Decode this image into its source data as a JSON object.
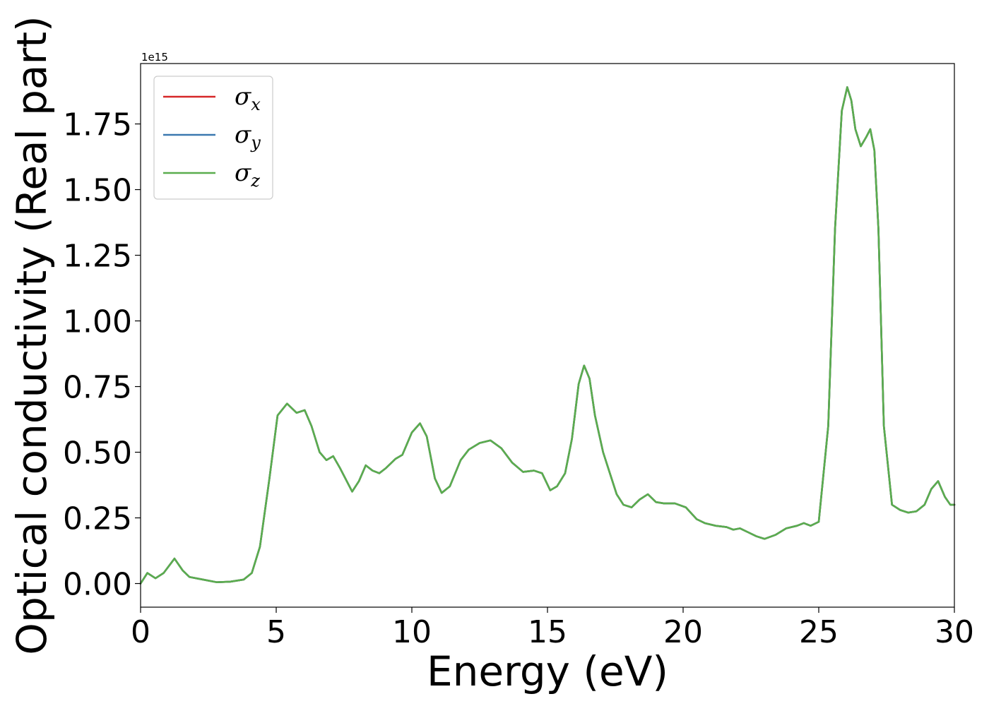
{
  "chart_data": {
    "type": "line",
    "xlabel": "Energy (eV)",
    "ylabel": "Optical conductivity (Real part)",
    "offset_text": "1e15",
    "xlim": [
      0,
      30
    ],
    "ylim": [
      -0.09,
      1.98
    ],
    "x_ticks": [
      0,
      5,
      10,
      15,
      20,
      25,
      30
    ],
    "y_ticks": [
      0.0,
      0.25,
      0.5,
      0.75,
      1.0,
      1.25,
      1.5,
      1.75
    ],
    "x_tick_labels": [
      "0",
      "5",
      "10",
      "15",
      "20",
      "25",
      "30"
    ],
    "y_tick_labels": [
      "0.00",
      "0.25",
      "0.50",
      "0.75",
      "1.00",
      "1.25",
      "1.50",
      "1.75"
    ],
    "grid": false,
    "legend_position": "upper-left",
    "x": [
      0,
      0.25,
      0.55,
      0.85,
      1.25,
      1.55,
      1.8,
      2.3,
      2.8,
      3.3,
      3.8,
      4.1,
      4.4,
      4.75,
      5.05,
      5.4,
      5.75,
      6.05,
      6.3,
      6.6,
      6.85,
      7.1,
      7.35,
      7.8,
      8.05,
      8.3,
      8.55,
      8.8,
      9.05,
      9.4,
      9.65,
      10.0,
      10.3,
      10.55,
      10.85,
      11.1,
      11.4,
      11.8,
      12.1,
      12.5,
      12.9,
      13.3,
      13.7,
      14.1,
      14.5,
      14.8,
      15.1,
      15.35,
      15.65,
      15.9,
      16.15,
      16.35,
      16.55,
      16.75,
      17.05,
      17.3,
      17.55,
      17.8,
      18.1,
      18.4,
      18.7,
      19.0,
      19.3,
      19.7,
      20.1,
      20.5,
      20.8,
      21.2,
      21.6,
      21.85,
      22.1,
      22.4,
      22.7,
      23.0,
      23.4,
      23.8,
      24.2,
      24.45,
      24.7,
      25.0,
      25.35,
      25.6,
      25.85,
      26.05,
      26.2,
      26.35,
      26.55,
      26.75,
      26.9,
      27.05,
      27.2,
      27.4,
      27.7,
      28.0,
      28.3,
      28.6,
      28.9,
      29.15,
      29.4,
      29.65,
      29.85,
      30.0
    ],
    "series": [
      {
        "name": "σx",
        "color": "#d62728",
        "values": [
          0.0,
          0.04,
          0.02,
          0.04,
          0.095,
          0.05,
          0.025,
          0.015,
          0.005,
          0.007,
          0.015,
          0.04,
          0.14,
          0.4,
          0.64,
          0.685,
          0.65,
          0.66,
          0.6,
          0.5,
          0.47,
          0.485,
          0.44,
          0.35,
          0.39,
          0.45,
          0.43,
          0.42,
          0.44,
          0.475,
          0.49,
          0.575,
          0.61,
          0.56,
          0.4,
          0.345,
          0.37,
          0.47,
          0.51,
          0.535,
          0.545,
          0.515,
          0.46,
          0.425,
          0.43,
          0.42,
          0.355,
          0.37,
          0.42,
          0.55,
          0.76,
          0.83,
          0.78,
          0.64,
          0.5,
          0.42,
          0.34,
          0.3,
          0.29,
          0.32,
          0.34,
          0.31,
          0.305,
          0.305,
          0.29,
          0.245,
          0.23,
          0.22,
          0.215,
          0.205,
          0.21,
          0.195,
          0.18,
          0.17,
          0.185,
          0.21,
          0.22,
          0.23,
          0.22,
          0.235,
          0.6,
          1.35,
          1.8,
          1.89,
          1.84,
          1.73,
          1.665,
          1.7,
          1.73,
          1.65,
          1.35,
          0.6,
          0.3,
          0.28,
          0.27,
          0.275,
          0.3,
          0.36,
          0.39,
          0.33,
          0.3,
          0.3
        ]
      },
      {
        "name": "σy",
        "color": "#3b78b0",
        "values": [
          0.0,
          0.04,
          0.02,
          0.04,
          0.095,
          0.05,
          0.025,
          0.015,
          0.005,
          0.007,
          0.015,
          0.04,
          0.14,
          0.4,
          0.64,
          0.685,
          0.65,
          0.66,
          0.6,
          0.5,
          0.47,
          0.485,
          0.44,
          0.35,
          0.39,
          0.45,
          0.43,
          0.42,
          0.44,
          0.475,
          0.49,
          0.575,
          0.61,
          0.56,
          0.4,
          0.345,
          0.37,
          0.47,
          0.51,
          0.535,
          0.545,
          0.515,
          0.46,
          0.425,
          0.43,
          0.42,
          0.355,
          0.37,
          0.42,
          0.55,
          0.76,
          0.83,
          0.78,
          0.64,
          0.5,
          0.42,
          0.34,
          0.3,
          0.29,
          0.32,
          0.34,
          0.31,
          0.305,
          0.305,
          0.29,
          0.245,
          0.23,
          0.22,
          0.215,
          0.205,
          0.21,
          0.195,
          0.18,
          0.17,
          0.185,
          0.21,
          0.22,
          0.23,
          0.22,
          0.235,
          0.6,
          1.35,
          1.8,
          1.89,
          1.84,
          1.73,
          1.665,
          1.7,
          1.73,
          1.65,
          1.35,
          0.6,
          0.3,
          0.28,
          0.27,
          0.275,
          0.3,
          0.36,
          0.39,
          0.33,
          0.3,
          0.3
        ]
      },
      {
        "name": "σz",
        "color": "#5aad4e",
        "values": [
          0.0,
          0.04,
          0.02,
          0.04,
          0.095,
          0.05,
          0.025,
          0.015,
          0.005,
          0.007,
          0.015,
          0.04,
          0.14,
          0.4,
          0.64,
          0.685,
          0.65,
          0.66,
          0.6,
          0.5,
          0.47,
          0.485,
          0.44,
          0.35,
          0.39,
          0.45,
          0.43,
          0.42,
          0.44,
          0.475,
          0.49,
          0.575,
          0.61,
          0.56,
          0.4,
          0.345,
          0.37,
          0.47,
          0.51,
          0.535,
          0.545,
          0.515,
          0.46,
          0.425,
          0.43,
          0.42,
          0.355,
          0.37,
          0.42,
          0.55,
          0.76,
          0.83,
          0.78,
          0.64,
          0.5,
          0.42,
          0.34,
          0.3,
          0.29,
          0.32,
          0.34,
          0.31,
          0.305,
          0.305,
          0.29,
          0.245,
          0.23,
          0.22,
          0.215,
          0.205,
          0.21,
          0.195,
          0.18,
          0.17,
          0.185,
          0.21,
          0.22,
          0.23,
          0.22,
          0.235,
          0.6,
          1.35,
          1.8,
          1.89,
          1.84,
          1.73,
          1.665,
          1.7,
          1.73,
          1.65,
          1.35,
          0.6,
          0.3,
          0.28,
          0.27,
          0.275,
          0.3,
          0.36,
          0.39,
          0.33,
          0.3,
          0.3
        ]
      }
    ],
    "legend": [
      {
        "symbol": "σ",
        "subscript": "x",
        "color": "#d62728"
      },
      {
        "symbol": "σ",
        "subscript": "y",
        "color": "#3b78b0"
      },
      {
        "symbol": "σ",
        "subscript": "z",
        "color": "#5aad4e"
      }
    ]
  }
}
